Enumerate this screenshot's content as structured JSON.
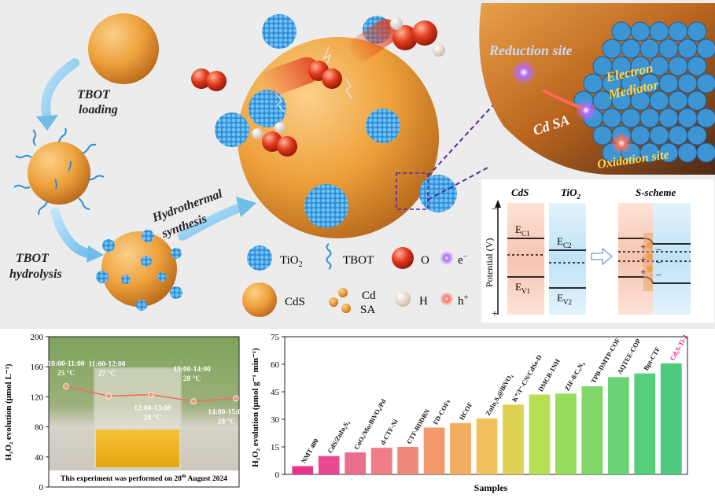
{
  "scheme": {
    "step_labels": {
      "tbot_loading_1": "TBOT",
      "tbot_loading_2": "loading",
      "tbot_hydrolysis_1": "TBOT",
      "tbot_hydrolysis_2": "hydrolysis",
      "hydrothermal_1": "Hydrothermal",
      "hydrothermal_2": "synthesis"
    },
    "legend": {
      "tio2": "TiO",
      "tio2_sub": "2",
      "tbot": "TBOT",
      "o": "O",
      "e": "e",
      "e_sup": "−",
      "cds": "CdS",
      "cd": "Cd",
      "sa": "SA",
      "h": "H",
      "hplus": "h",
      "hplus_sup": "+"
    },
    "mechanism": {
      "reduction_site": "Reduction site",
      "electron_1": "Electron",
      "electron_2": "Mediator",
      "cd_sa": "Cd SA",
      "oxidation_site": "Oxidation site"
    },
    "band": {
      "cds": "CdS",
      "tio2": "TiO",
      "tio2_sub": "2",
      "s_scheme": "S-scheme",
      "potential": "Potential (V)",
      "minus": "−",
      "plus": "+",
      "ec": "E",
      "ec1_sub": "C1",
      "ec2_sub": "C2",
      "ev": "E",
      "ev1_sub": "V1",
      "ev2_sub": "V2"
    },
    "colors": {
      "background": "#ececec",
      "cds_orange": "#eea13b",
      "tio2_blue": "#3f9fe0",
      "oxygen_red": "#e23a1c",
      "cds_band": "#f7c4b1",
      "tio2_band": "#bfe3f7"
    }
  },
  "photo_chart": {
    "photo_caption_pre": "This experiment was performed on 28",
    "photo_caption_sup": "th",
    "photo_caption_post": " August 2024"
  },
  "chart_data": [
    {
      "type": "line",
      "ylabel": "H₂O₂ evolution (μmol L⁻¹)",
      "ylim": [
        0,
        200
      ],
      "yticks": [
        0,
        40,
        80,
        120,
        160,
        200
      ],
      "grid": false,
      "points": [
        {
          "label": "10:00-11:00",
          "temp": "25 °C",
          "value": 134
        },
        {
          "label": "11:00-12:00",
          "temp": "27 °C",
          "value": 121
        },
        {
          "label": "12:00-13:00",
          "temp": "28 °C",
          "value": 123
        },
        {
          "label": "13:00-14:00",
          "temp": "28 °C",
          "value": 114
        },
        {
          "label": "14:00-15:00",
          "temp": "28 °C",
          "value": 118
        }
      ]
    },
    {
      "type": "bar",
      "xlabel": "Samples",
      "ylabel": "H₂O₂ evolution (μmol g⁻¹ min⁻¹)",
      "ylim": [
        0,
        75
      ],
      "yticks": [
        0,
        15,
        30,
        45,
        60,
        75
      ],
      "grid": false,
      "categories": [
        "NMT 400",
        "CdS/ZnIn₂S₄",
        "CoOₓ/Mo:BiVO₄/Pd",
        "d-CTF-Ni",
        "CTF-BDDBN",
        "FD-COFs",
        "HCOF",
        "ZnIn₂S₄@BiVO₄",
        "K⁺/I⁻-CN/CdSe-D",
        "DMCR-1NH",
        "ZIF-8/C₃N₄",
        "TPB-DMTP-COF",
        "AQTEE-COP",
        "Bpt-CTF",
        "Cd₁S-Ti-2"
      ],
      "values": [
        4.5,
        10,
        12,
        14.5,
        15,
        25.5,
        28,
        30.5,
        38,
        43.5,
        44,
        48,
        53,
        55,
        60.5
      ],
      "bar_colors": [
        "#e8348c",
        "#e74a92",
        "#ea6f8e",
        "#ee7e84",
        "#ef8a7a",
        "#f29a6e",
        "#f3ad62",
        "#f1c05a",
        "#ddd254",
        "#b7df56",
        "#98dc5e",
        "#7fd768",
        "#69d272",
        "#57ce7a",
        "#4bca80"
      ],
      "highlight_label_color": "#e8207a"
    }
  ]
}
